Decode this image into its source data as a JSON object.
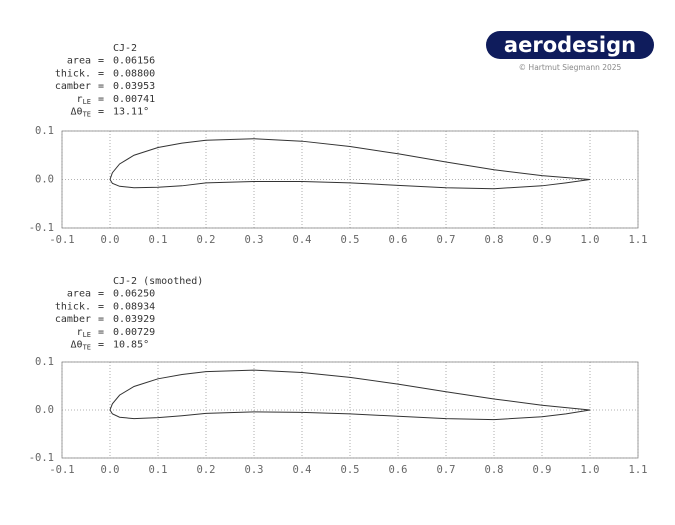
{
  "branding": {
    "logo": "aerodesign",
    "copyright": "© Hartmut Siegmann 2025"
  },
  "chart_data": [
    {
      "type": "line",
      "title": "CJ-2",
      "stats": [
        {
          "label": "area",
          "separator": "=",
          "value": "0.06156"
        },
        {
          "label": "thick.",
          "separator": "=",
          "value": "0.08800"
        },
        {
          "label": "camber",
          "separator": "=",
          "value": "0.03953"
        },
        {
          "label": "r",
          "sub": "LE",
          "separator": "=",
          "value": "0.00741"
        },
        {
          "label": "Δθ",
          "sub": "TE",
          "separator": "=",
          "value": "13.11°"
        }
      ],
      "x": [
        1.0,
        0.9,
        0.8,
        0.7,
        0.6,
        0.5,
        0.4,
        0.3,
        0.2,
        0.15,
        0.1,
        0.05,
        0.02,
        0.005,
        0.0,
        0.005,
        0.02,
        0.05,
        0.1,
        0.15,
        0.2,
        0.3,
        0.4,
        0.5,
        0.6,
        0.7,
        0.8,
        0.9,
        0.95,
        1.0
      ],
      "series": [
        {
          "color": "#333333",
          "values": [
            0.0,
            0.008,
            0.02,
            0.036,
            0.053,
            0.068,
            0.079,
            0.084,
            0.081,
            0.075,
            0.066,
            0.05,
            0.032,
            0.014,
            0.0,
            -0.008,
            -0.014,
            -0.017,
            -0.016,
            -0.013,
            -0.007,
            -0.004,
            -0.004,
            -0.007,
            -0.012,
            -0.017,
            -0.019,
            -0.013,
            -0.007,
            0.0
          ]
        }
      ],
      "xlim": [
        -0.1,
        1.1
      ],
      "xticks": [
        -0.1,
        {
          "value": 0,
          "label": "0.0"
        },
        0.1,
        0.2,
        0.3,
        0.4,
        0.5,
        0.6,
        0.7,
        0.8,
        0.9,
        {
          "value": 1,
          "label": "1.0"
        },
        1.1
      ],
      "ylim": [
        -0.1,
        0.1
      ],
      "yticks": [
        -0.1,
        {
          "value": 0,
          "label": "0.0"
        },
        0.1
      ],
      "grid": true
    },
    {
      "type": "line",
      "title": "CJ-2 (smoothed)",
      "stats": [
        {
          "label": "area",
          "separator": "=",
          "value": "0.06250"
        },
        {
          "label": "thick.",
          "separator": "=",
          "value": "0.08934"
        },
        {
          "label": "camber",
          "separator": "=",
          "value": "0.03929"
        },
        {
          "label": "r",
          "sub": "LE",
          "separator": "=",
          "value": "0.00729"
        },
        {
          "label": "Δθ",
          "sub": "TE",
          "separator": "=",
          "value": "10.85°"
        }
      ],
      "x": [
        1.0,
        0.9,
        0.8,
        0.7,
        0.6,
        0.5,
        0.4,
        0.3,
        0.2,
        0.15,
        0.1,
        0.05,
        0.02,
        0.005,
        0.0,
        0.005,
        0.02,
        0.05,
        0.1,
        0.15,
        0.2,
        0.3,
        0.4,
        0.5,
        0.6,
        0.7,
        0.8,
        0.9,
        0.95,
        1.0
      ],
      "series": [
        {
          "color": "#333333",
          "values": [
            0.0,
            0.01,
            0.023,
            0.038,
            0.054,
            0.068,
            0.078,
            0.083,
            0.08,
            0.074,
            0.065,
            0.049,
            0.031,
            0.013,
            0.0,
            -0.008,
            -0.015,
            -0.018,
            -0.016,
            -0.012,
            -0.007,
            -0.004,
            -0.005,
            -0.008,
            -0.013,
            -0.018,
            -0.02,
            -0.014,
            -0.008,
            0.0
          ]
        }
      ],
      "xlim": [
        -0.1,
        1.1
      ],
      "xticks": [
        -0.1,
        {
          "value": 0,
          "label": "0.0"
        },
        0.1,
        0.2,
        0.3,
        0.4,
        0.5,
        0.6,
        0.7,
        0.8,
        0.9,
        {
          "value": 1,
          "label": "1.0"
        },
        1.1
      ],
      "ylim": [
        -0.1,
        0.1
      ],
      "yticks": [
        -0.1,
        {
          "value": 0,
          "label": "0.0"
        },
        0.1
      ],
      "grid": true
    }
  ]
}
